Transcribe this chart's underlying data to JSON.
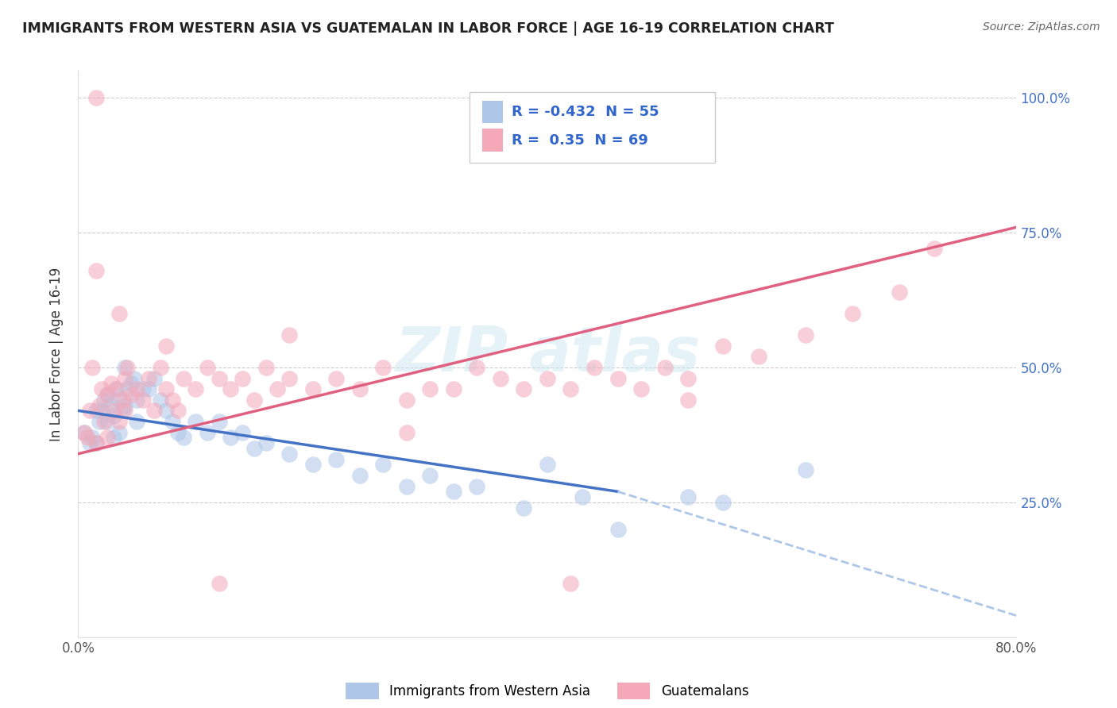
{
  "title": "IMMIGRANTS FROM WESTERN ASIA VS GUATEMALAN IN LABOR FORCE | AGE 16-19 CORRELATION CHART",
  "source": "Source: ZipAtlas.com",
  "ylabel": "In Labor Force | Age 16-19",
  "xlim": [
    0.0,
    0.8
  ],
  "ylim": [
    0.0,
    1.05
  ],
  "xticks": [
    0.0,
    0.2,
    0.4,
    0.6,
    0.8
  ],
  "xticklabels": [
    "0.0%",
    "",
    "",
    "",
    "80.0%"
  ],
  "yticks": [
    0.0,
    0.25,
    0.5,
    0.75,
    1.0
  ],
  "right_yticklabels": [
    "",
    "25.0%",
    "50.0%",
    "75.0%",
    "100.0%"
  ],
  "legend_bottom": [
    {
      "label": "Immigrants from Western Asia",
      "color": "#aec6e8"
    },
    {
      "label": "Guatemalans",
      "color": "#f4a8b8"
    }
  ],
  "R_blue": -0.432,
  "N_blue": 55,
  "R_pink": 0.35,
  "N_pink": 69,
  "blue_scatter_x": [
    0.005,
    0.01,
    0.012,
    0.015,
    0.015,
    0.018,
    0.02,
    0.022,
    0.025,
    0.025,
    0.028,
    0.03,
    0.03,
    0.032,
    0.035,
    0.035,
    0.038,
    0.04,
    0.04,
    0.042,
    0.045,
    0.048,
    0.05,
    0.05,
    0.055,
    0.06,
    0.065,
    0.07,
    0.075,
    0.08,
    0.085,
    0.09,
    0.1,
    0.11,
    0.12,
    0.13,
    0.14,
    0.15,
    0.16,
    0.18,
    0.2,
    0.22,
    0.24,
    0.26,
    0.28,
    0.3,
    0.32,
    0.34,
    0.38,
    0.4,
    0.43,
    0.46,
    0.52,
    0.55,
    0.62
  ],
  "blue_scatter_y": [
    0.38,
    0.36,
    0.37,
    0.42,
    0.36,
    0.4,
    0.42,
    0.44,
    0.45,
    0.4,
    0.43,
    0.41,
    0.37,
    0.46,
    0.44,
    0.38,
    0.42,
    0.43,
    0.5,
    0.46,
    0.47,
    0.48,
    0.44,
    0.4,
    0.46,
    0.46,
    0.48,
    0.44,
    0.42,
    0.4,
    0.38,
    0.37,
    0.4,
    0.38,
    0.4,
    0.37,
    0.38,
    0.35,
    0.36,
    0.34,
    0.32,
    0.33,
    0.3,
    0.32,
    0.28,
    0.3,
    0.27,
    0.28,
    0.24,
    0.32,
    0.26,
    0.2,
    0.26,
    0.25,
    0.31
  ],
  "pink_scatter_x": [
    0.005,
    0.008,
    0.01,
    0.012,
    0.015,
    0.015,
    0.018,
    0.02,
    0.022,
    0.025,
    0.025,
    0.028,
    0.03,
    0.032,
    0.035,
    0.035,
    0.038,
    0.04,
    0.04,
    0.042,
    0.045,
    0.05,
    0.055,
    0.06,
    0.065,
    0.07,
    0.075,
    0.08,
    0.085,
    0.09,
    0.1,
    0.11,
    0.12,
    0.13,
    0.14,
    0.15,
    0.16,
    0.17,
    0.18,
    0.2,
    0.22,
    0.24,
    0.26,
    0.28,
    0.3,
    0.32,
    0.34,
    0.36,
    0.38,
    0.4,
    0.42,
    0.44,
    0.46,
    0.48,
    0.5,
    0.52,
    0.55,
    0.58,
    0.62,
    0.66,
    0.7,
    0.73,
    0.015,
    0.42,
    0.28,
    0.18,
    0.12,
    0.075,
    0.52
  ],
  "pink_scatter_y": [
    0.38,
    0.37,
    0.42,
    0.5,
    0.68,
    0.36,
    0.43,
    0.46,
    0.4,
    0.45,
    0.37,
    0.47,
    0.42,
    0.46,
    0.4,
    0.6,
    0.44,
    0.42,
    0.48,
    0.5,
    0.45,
    0.46,
    0.44,
    0.48,
    0.42,
    0.5,
    0.46,
    0.44,
    0.42,
    0.48,
    0.46,
    0.5,
    0.48,
    0.46,
    0.48,
    0.44,
    0.5,
    0.46,
    0.48,
    0.46,
    0.48,
    0.46,
    0.5,
    0.44,
    0.46,
    0.46,
    0.5,
    0.48,
    0.46,
    0.48,
    0.46,
    0.5,
    0.48,
    0.46,
    0.5,
    0.48,
    0.54,
    0.52,
    0.56,
    0.6,
    0.64,
    0.72,
    1.0,
    0.1,
    0.38,
    0.56,
    0.1,
    0.54,
    0.44
  ],
  "blue_line": {
    "x0": 0.0,
    "y0": 0.42,
    "x1": 0.46,
    "y1": 0.27
  },
  "blue_dashed_line": {
    "x0": 0.46,
    "y0": 0.27,
    "x1": 0.8,
    "y1": 0.04
  },
  "pink_line": {
    "x0": 0.0,
    "y0": 0.34,
    "x1": 0.8,
    "y1": 0.76
  },
  "dot_color_blue": "#aec6e8",
  "dot_color_pink": "#f4a8b8",
  "line_color_blue": "#4472c4",
  "line_color_pink": "#e06080",
  "line_color_blue_dashed": "#aec6e8",
  "background_color": "#ffffff",
  "grid_color": "#cccccc",
  "title_color": "#222222",
  "right_yaxis_color": "#4472c4"
}
